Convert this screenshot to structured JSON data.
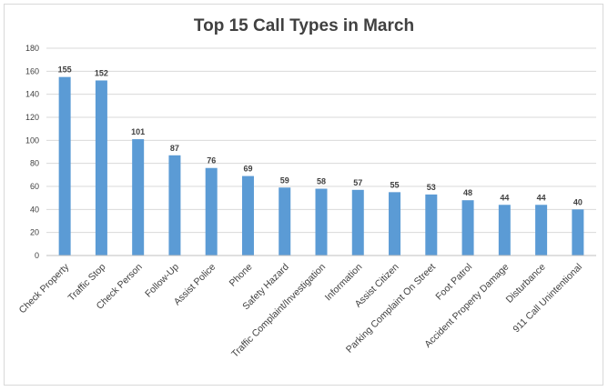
{
  "chart_data": {
    "type": "bar",
    "title": "Top 15 Call Types in March",
    "xlabel": "",
    "ylabel": "",
    "ylim": [
      0,
      180
    ],
    "yticks": [
      0,
      20,
      40,
      60,
      80,
      100,
      120,
      140,
      160,
      180
    ],
    "grid": true,
    "legend": "none",
    "bar_color": "#5b9bd5",
    "categories": [
      "Check Property",
      "Traffic Stop",
      "Check Person",
      "Follow-Up",
      "Assist Police",
      "Phone",
      "Safety Hazard",
      "Traffic Complaint/Investigation",
      "Information",
      "Assist Citizen",
      "Parking Complaint On Street",
      "Foot Patrol",
      "Accident Property Damage",
      "Disturbance",
      "911 Call Unintentional"
    ],
    "values": [
      155,
      152,
      101,
      87,
      76,
      69,
      59,
      58,
      57,
      55,
      53,
      48,
      44,
      44,
      40
    ]
  }
}
